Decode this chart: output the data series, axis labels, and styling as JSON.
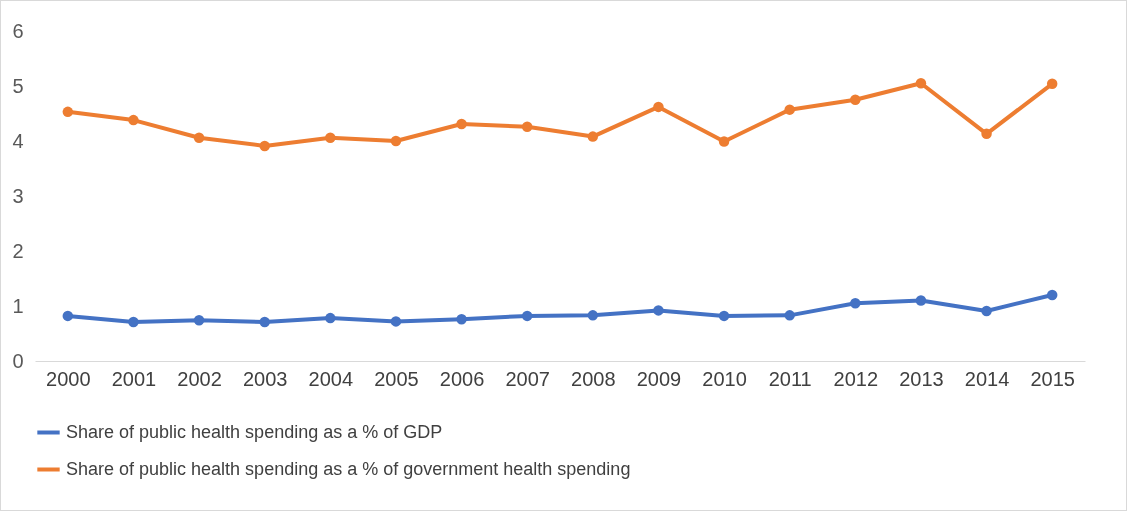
{
  "chart_data": {
    "type": "line",
    "categories": [
      "2000",
      "2001",
      "2002",
      "2003",
      "2004",
      "2005",
      "2006",
      "2007",
      "2008",
      "2009",
      "2010",
      "2011",
      "2012",
      "2013",
      "2014",
      "2015"
    ],
    "series": [
      {
        "name": "Share of public health spending as a % of GDP",
        "color": "#4472c4",
        "values": [
          0.82,
          0.71,
          0.74,
          0.71,
          0.78,
          0.72,
          0.76,
          0.82,
          0.83,
          0.92,
          0.82,
          0.83,
          1.05,
          1.1,
          0.91,
          1.2
        ]
      },
      {
        "name": "Share of public health spending as a % of government health spending",
        "color": "#ed7d31",
        "values": [
          4.53,
          4.38,
          4.06,
          3.91,
          4.06,
          4.0,
          4.31,
          4.26,
          4.08,
          4.62,
          3.99,
          4.57,
          4.75,
          5.05,
          4.13,
          5.04
        ]
      }
    ],
    "ylim": [
      0,
      6
    ],
    "yticks": [
      0,
      1,
      2,
      3,
      4,
      5,
      6
    ],
    "grid": false,
    "legend": "bottom",
    "marker": "circle",
    "line_style": "solid"
  }
}
